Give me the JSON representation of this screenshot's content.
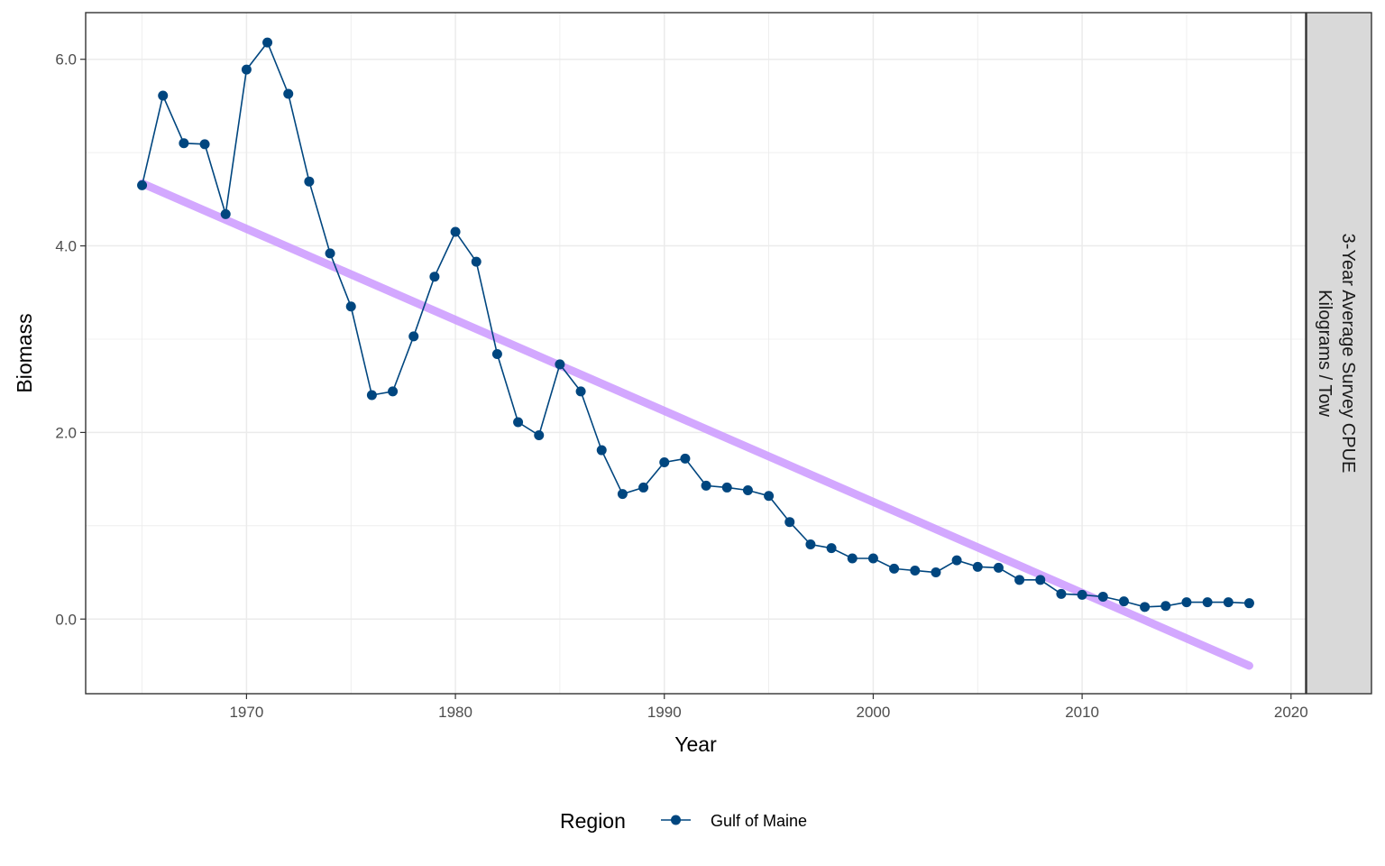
{
  "chart_data": {
    "type": "line",
    "xlabel": "Year",
    "ylabel": "Biomass",
    "xlim": [
      1962.3,
      2020.7
    ],
    "ylim": [
      -0.8,
      6.5
    ],
    "x_ticks": [
      1970,
      1980,
      1990,
      2000,
      2010,
      2020
    ],
    "y_ticks": [
      0.0,
      2.0,
      4.0,
      6.0
    ],
    "x_tick_labels": [
      "1970",
      "1980",
      "1990",
      "2000",
      "2010",
      "2020"
    ],
    "y_tick_labels": [
      "0.0",
      "2.0",
      "4.0",
      "6.0"
    ],
    "grid": true,
    "facet_strip": {
      "line1": "3-Year Average Survey CPUE",
      "line2": "Kilograms / Tow",
      "color": "#d9d9d9"
    },
    "legend": {
      "title": "Region",
      "position": "bottom",
      "entries": [
        "Gulf of Maine"
      ]
    },
    "series": [
      {
        "name": "Gulf of Maine",
        "color": "#00467f",
        "x": [
          1965,
          1966,
          1967,
          1968,
          1969,
          1970,
          1971,
          1972,
          1973,
          1974,
          1975,
          1976,
          1977,
          1978,
          1979,
          1980,
          1981,
          1982,
          1983,
          1984,
          1985,
          1986,
          1987,
          1988,
          1989,
          1990,
          1991,
          1992,
          1993,
          1994,
          1995,
          1996,
          1997,
          1998,
          1999,
          2000,
          2001,
          2002,
          2003,
          2004,
          2005,
          2006,
          2007,
          2008,
          2009,
          2010,
          2011,
          2012,
          2013,
          2014,
          2015,
          2016,
          2017,
          2018
        ],
        "y": [
          4.65,
          5.61,
          5.1,
          5.09,
          4.34,
          5.89,
          6.18,
          5.63,
          4.69,
          3.92,
          3.35,
          2.4,
          2.44,
          3.03,
          3.67,
          4.15,
          3.83,
          2.84,
          2.11,
          1.97,
          2.73,
          2.44,
          1.81,
          1.34,
          1.41,
          1.68,
          1.72,
          1.43,
          1.41,
          1.38,
          1.32,
          1.04,
          0.8,
          0.76,
          0.65,
          0.65,
          0.54,
          0.52,
          0.5,
          0.63,
          0.56,
          0.55,
          0.42,
          0.42,
          0.27,
          0.26,
          0.24,
          0.19,
          0.13,
          0.14,
          0.18,
          0.18,
          0.18,
          0.17
        ]
      }
    ],
    "trend_line": {
      "color": "#cc99ff",
      "x": [
        1965,
        2018
      ],
      "y": [
        4.67,
        -0.5
      ]
    }
  }
}
